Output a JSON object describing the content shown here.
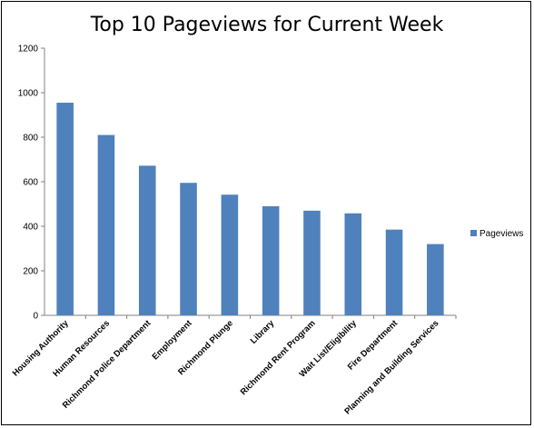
{
  "chart_data": {
    "type": "bar",
    "title": "Top 10 Pageviews for Current Week",
    "xlabel": "",
    "ylabel": "",
    "categories": [
      "Housing Authority",
      "Human Resources",
      "Richmond Police Department",
      "Employment",
      "Richmond Plunge",
      "Library",
      "Richmond Rent Program",
      "Wait List/Eligibility",
      "Fire Department",
      "Planning and Building Services"
    ],
    "series": [
      {
        "name": "Pageviews",
        "values": [
          955,
          810,
          672,
          595,
          542,
          490,
          470,
          458,
          385,
          320
        ],
        "color": "#4f81bd"
      }
    ],
    "ylim": [
      0,
      1200
    ],
    "yticks": [
      0,
      200,
      400,
      600,
      800,
      1000,
      1200
    ],
    "grid": false,
    "legend_position": "right"
  }
}
